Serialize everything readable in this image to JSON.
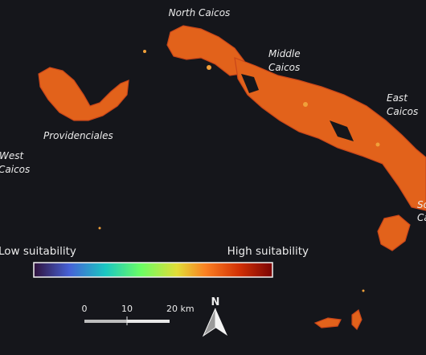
{
  "places": {
    "north_caicos": "North Caicos",
    "middle_caicos": [
      "Middle",
      "Caicos"
    ],
    "east_caicos": [
      "East",
      "Caicos"
    ],
    "providenciales": "Providenciales",
    "west_caicos": [
      "West",
      "Caicos"
    ],
    "south_caicos": [
      "So",
      "Ca"
    ]
  },
  "legend": {
    "low": "Low suitability",
    "high": "High suitability"
  },
  "scale_bar": {
    "labels": [
      "0",
      "10",
      "20 km"
    ]
  },
  "north_arrow": "N"
}
